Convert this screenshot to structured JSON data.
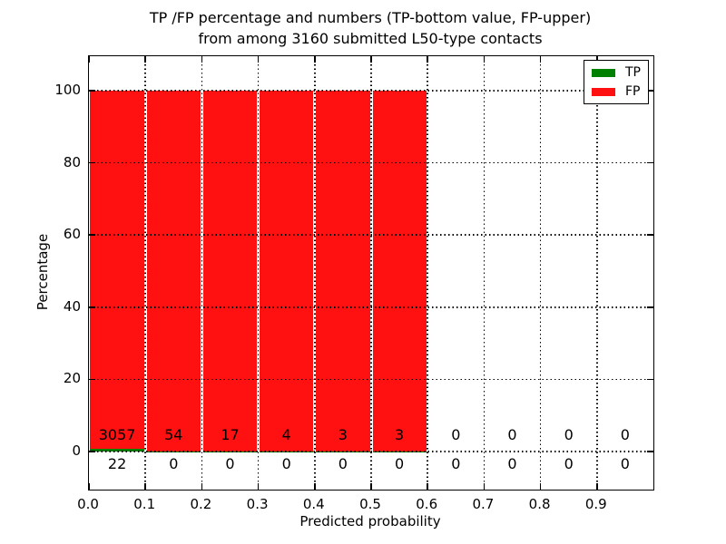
{
  "figure": {
    "title_line1": "TP /FP percentage and numbers (TP-bottom value, FP-upper)",
    "title_line2": "from among 3160 submitted L50-type contacts",
    "xlabel": "Predicted probability",
    "ylabel": "Percentage"
  },
  "legend": {
    "items": [
      {
        "label": "TP",
        "color": "#008000"
      },
      {
        "label": "FP",
        "color": "#ff1111"
      }
    ]
  },
  "chart_data": {
    "type": "bar",
    "stacked": true,
    "title": "TP /FP percentage and numbers (TP-bottom value, FP-upper)\nfrom among 3160 submitted L50-type contacts",
    "xlabel": "Predicted probability",
    "ylabel": "Percentage",
    "total_contacts": 3160,
    "bin_edges": [
      0.0,
      0.1,
      0.2,
      0.3,
      0.4,
      0.5,
      0.6,
      0.7,
      0.8,
      0.9,
      1.0
    ],
    "x_tick_values": [
      0.0,
      0.1,
      0.2,
      0.3,
      0.4,
      0.5,
      0.6,
      0.7,
      0.8,
      0.9
    ],
    "x_tick_labels": [
      "0.0",
      "0.1",
      "0.2",
      "0.3",
      "0.4",
      "0.5",
      "0.6",
      "0.7",
      "0.8",
      "0.9"
    ],
    "y_tick_values": [
      0,
      20,
      40,
      60,
      80,
      100
    ],
    "y_tick_labels": [
      "0",
      "20",
      "40",
      "60",
      "80",
      "100"
    ],
    "xlim": [
      0.0,
      1.0
    ],
    "ylim": [
      -10.6,
      109.5
    ],
    "grid": "dotted",
    "legend_position": "upper right",
    "series": [
      {
        "name": "TP",
        "color": "#008000",
        "counts": [
          22,
          0,
          0,
          0,
          0,
          0,
          0,
          0,
          0,
          0
        ],
        "count_label_row": "below baseline"
      },
      {
        "name": "FP",
        "color": "#ff1111",
        "counts": [
          3057,
          54,
          17,
          4,
          3,
          3,
          0,
          0,
          0,
          0
        ],
        "count_label_row": "above baseline"
      }
    ],
    "tp_percent": [
      0.71,
      0,
      0,
      0,
      0,
      0,
      null,
      null,
      null,
      null
    ],
    "fp_percent": [
      99.29,
      100,
      100,
      100,
      100,
      100,
      null,
      null,
      null,
      null
    ]
  }
}
